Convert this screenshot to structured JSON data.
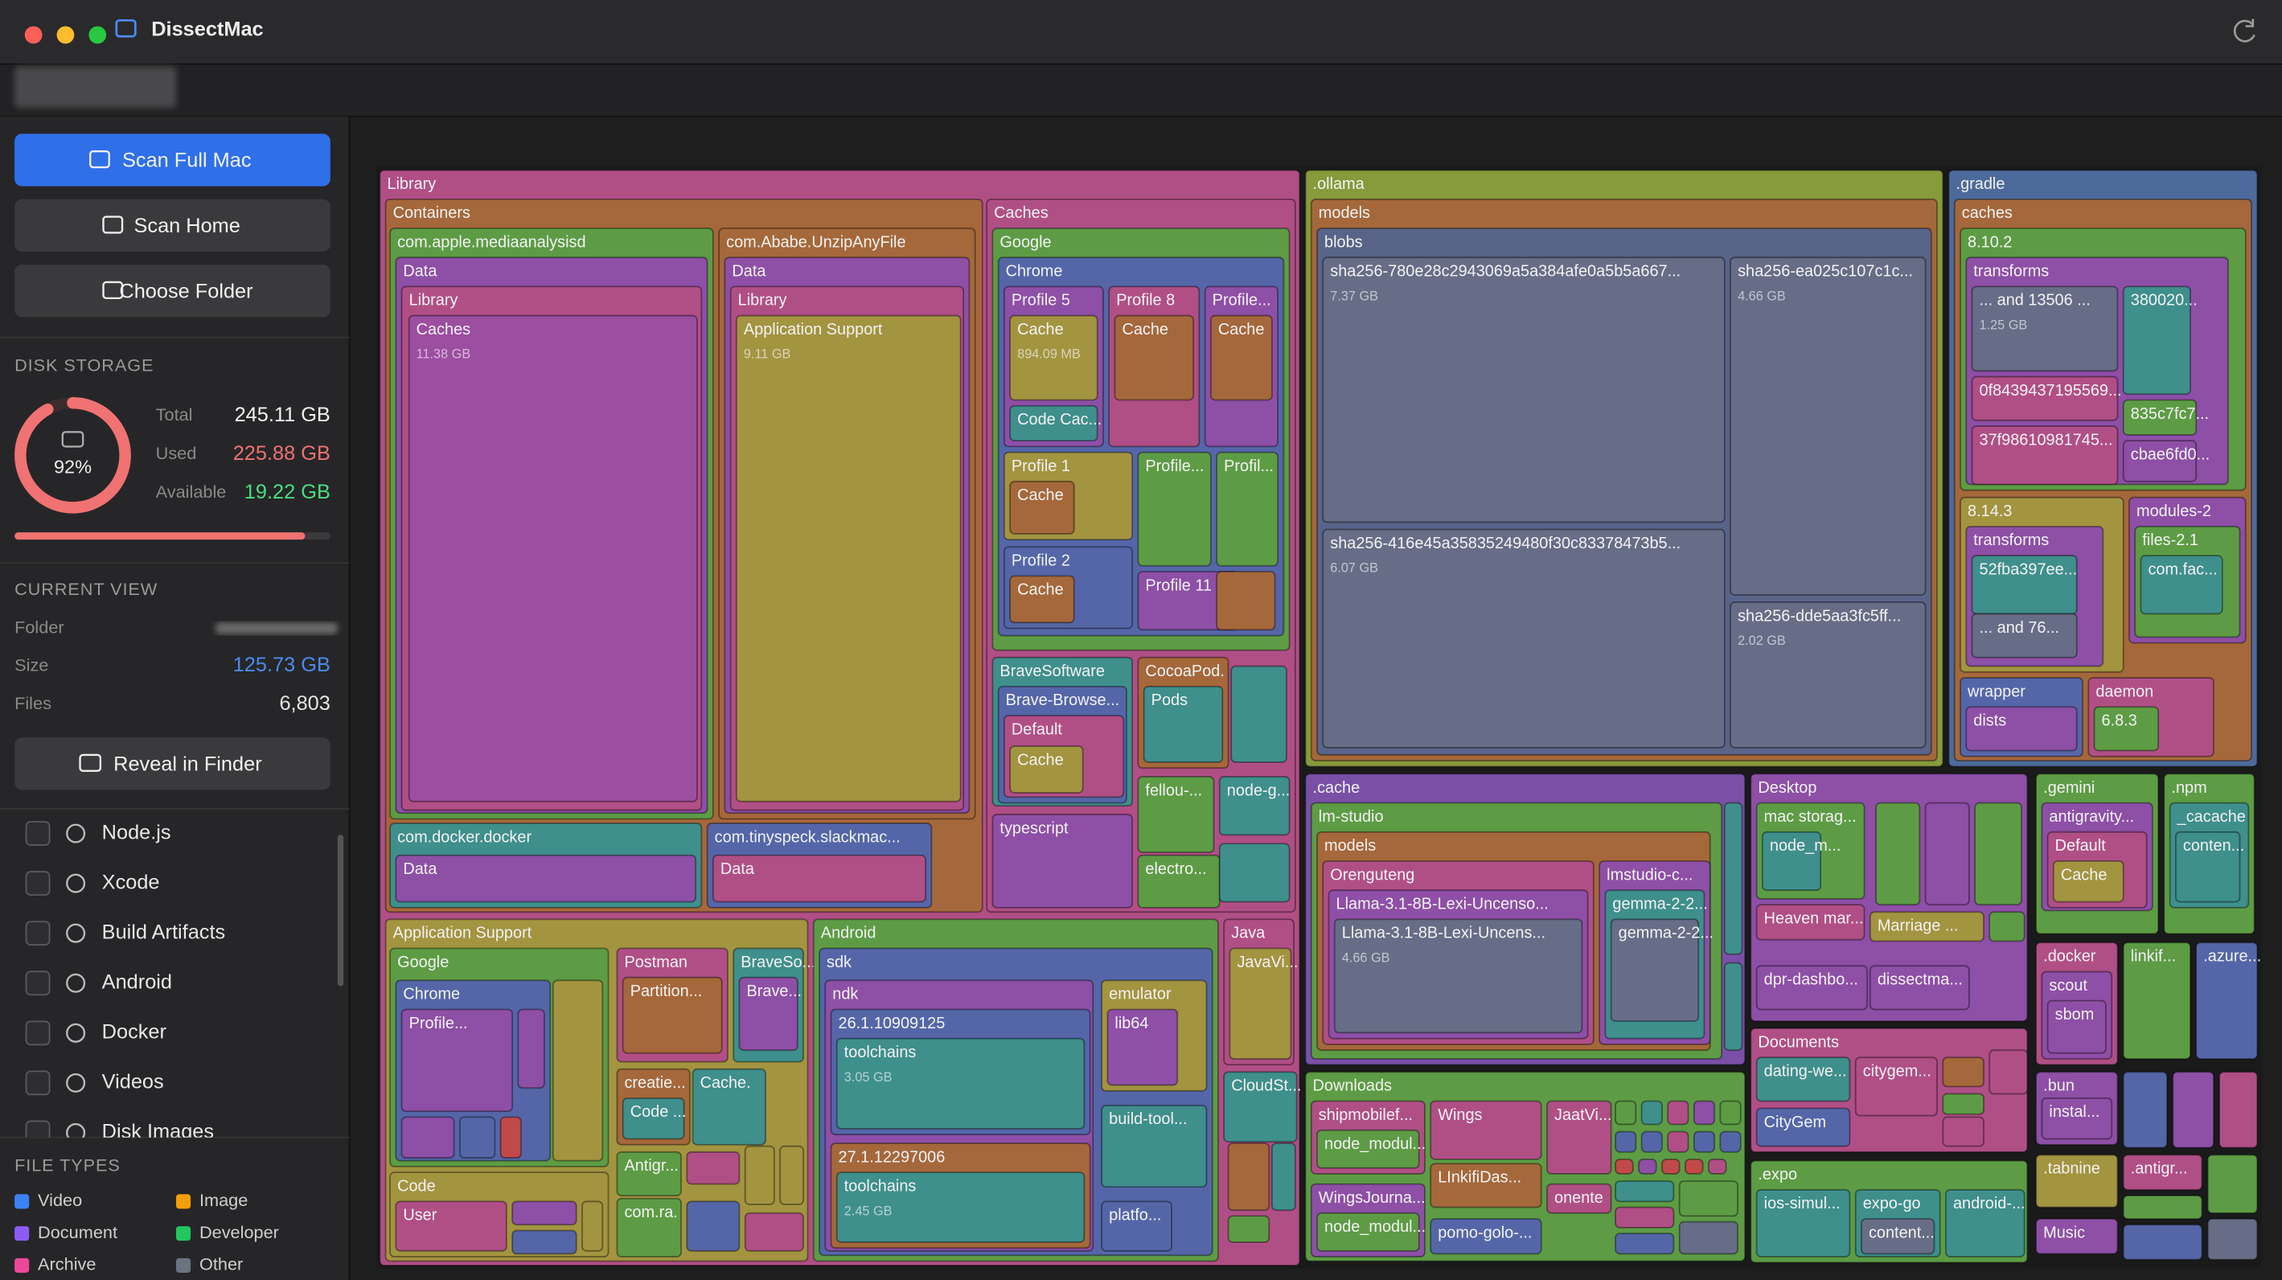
{
  "window": {
    "title": "DissectMac"
  },
  "sidebar": {
    "buttons": [
      "Scan Full Mac",
      "Scan Home",
      "Choose Folder"
    ],
    "disk_storage": {
      "heading": "DISK STORAGE",
      "usage": {
        "value": 92,
        "label": "92%"
      },
      "rows": [
        {
          "label": "Total",
          "value": "245.11 GB"
        },
        {
          "label": "Used",
          "value": "225.88 GB"
        },
        {
          "label": "Available",
          "value": "19.22 GB"
        }
      ]
    },
    "current_view": {
      "heading": "CURRENT VIEW",
      "folder_label": "Folder",
      "rows": [
        {
          "label": "Size",
          "value": "125.73 GB"
        },
        {
          "label": "Files",
          "value": "6,803"
        }
      ]
    },
    "reveal_button": "Reveal in Finder",
    "filters": [
      "Node.js",
      "Xcode",
      "Build Artifacts",
      "Android",
      "Docker",
      "Videos",
      "Disk Images"
    ],
    "file_types": {
      "heading": "FILE TYPES",
      "items": [
        {
          "name": "Video",
          "color": "#3b82f6"
        },
        {
          "name": "Image",
          "color": "#f59e0b"
        },
        {
          "name": "Document",
          "color": "#8b5cf6"
        },
        {
          "name": "Developer",
          "color": "#22c55e"
        },
        {
          "name": "Archive",
          "color": "#ec4899"
        },
        {
          "name": "Other",
          "color": "#6b7280"
        }
      ]
    }
  },
  "treemap": {
    "nodes": [
      {
        "label": "Library"
      },
      {
        "label": "Containers"
      },
      {
        "label": "com.apple.mediaanalysisd"
      },
      {
        "label": "Data"
      },
      {
        "label": "Library"
      },
      {
        "label": "Caches",
        "size": "11.38 GB"
      },
      {
        "label": "com.Ababe.UnzipAnyFile"
      },
      {
        "label": "Data"
      },
      {
        "label": "Library"
      },
      {
        "label": "Application Support",
        "size": "9.11 GB"
      },
      {
        "label": "com.docker.docker"
      },
      {
        "label": "Data"
      },
      {
        "label": "com.tinyspeck.slackmac..."
      },
      {
        "label": "Data"
      },
      {
        "label": "Caches"
      },
      {
        "label": "Google"
      },
      {
        "label": "Chrome"
      },
      {
        "label": "Profile 5"
      },
      {
        "label": "Cache",
        "size": "894.09 MB"
      },
      {
        "label": "Code Cac..."
      },
      {
        "label": "Profile 8"
      },
      {
        "label": "Cache"
      },
      {
        "label": "Profile..."
      },
      {
        "label": "Cache"
      },
      {
        "label": "Profile 1"
      },
      {
        "label": "Cache"
      },
      {
        "label": "Profile..."
      },
      {
        "label": "Profil..."
      },
      {
        "label": "Profile 2"
      },
      {
        "label": "Cache"
      },
      {
        "label": "Profile 11"
      },
      {
        "label": "BraveSoftware"
      },
      {
        "label": "Brave-Browse..."
      },
      {
        "label": "Default"
      },
      {
        "label": "Cache"
      },
      {
        "label": "CocoaPod."
      },
      {
        "label": "Pods"
      },
      {
        "label": "fellou-..."
      },
      {
        "label": "node-g..."
      },
      {
        "label": "typescript"
      },
      {
        "label": "electro..."
      },
      {
        "label": "Application Support"
      },
      {
        "label": "Google"
      },
      {
        "label": "Chrome"
      },
      {
        "label": "Profile..."
      },
      {
        "label": "Postman"
      },
      {
        "label": "Partition..."
      },
      {
        "label": "BraveSo..."
      },
      {
        "label": "Brave..."
      },
      {
        "label": "creatie..."
      },
      {
        "label": "Code ..."
      },
      {
        "label": "Cache."
      },
      {
        "label": "Antigr..."
      },
      {
        "label": "com.ra."
      },
      {
        "label": "Code"
      },
      {
        "label": "User"
      },
      {
        "label": "Android"
      },
      {
        "label": "sdk"
      },
      {
        "label": "ndk"
      },
      {
        "label": "26.1.10909125"
      },
      {
        "label": "toolchains",
        "size": "3.05 GB"
      },
      {
        "label": "27.1.12297006"
      },
      {
        "label": "toolchains",
        "size": "2.45 GB"
      },
      {
        "label": "emulator"
      },
      {
        "label": "lib64"
      },
      {
        "label": "build-tool..."
      },
      {
        "label": "platfo..."
      },
      {
        "label": "Java"
      },
      {
        "label": "JavaVi..."
      },
      {
        "label": "CloudSt..."
      },
      {
        "label": ".ollama"
      },
      {
        "label": "models"
      },
      {
        "label": "blobs"
      },
      {
        "label": "sha256-780e28c2943069a5a384afe0a5b5a667...",
        "size": "7.37 GB"
      },
      {
        "label": "sha256-ea025c107c1c...",
        "size": "4.66 GB"
      },
      {
        "label": "sha256-416e45a35835249480f30c83378473b5...",
        "size": "6.07 GB"
      },
      {
        "label": "sha256-dde5aa3fc5ff...",
        "size": "2.02 GB"
      },
      {
        "label": ".gradle"
      },
      {
        "label": "caches"
      },
      {
        "label": "8.10.2"
      },
      {
        "label": "transforms"
      },
      {
        "label": "... and 13506 ...",
        "size": "1.25 GB"
      },
      {
        "label": "380020..."
      },
      {
        "label": "0f8439437195569..."
      },
      {
        "label": "835c7fc7..."
      },
      {
        "label": "37f98610981745..."
      },
      {
        "label": "cbae6fd0..."
      },
      {
        "label": "8.14.3"
      },
      {
        "label": "transforms"
      },
      {
        "label": "52fba397ee..."
      },
      {
        "label": "... and 76..."
      },
      {
        "label": "modules-2"
      },
      {
        "label": "files-2.1"
      },
      {
        "label": "com.fac..."
      },
      {
        "label": "wrapper"
      },
      {
        "label": "dists"
      },
      {
        "label": "daemon"
      },
      {
        "label": "6.8.3"
      },
      {
        "label": ".cache"
      },
      {
        "label": "lm-studio"
      },
      {
        "label": "models"
      },
      {
        "label": "Orenguteng"
      },
      {
        "label": "Llama-3.1-8B-Lexi-Uncenso..."
      },
      {
        "label": "Llama-3.1-8B-Lexi-Uncens...",
        "size": "4.66 GB"
      },
      {
        "label": "lmstudio-c..."
      },
      {
        "label": "gemma-2-2..."
      },
      {
        "label": "gemma-2-2..."
      },
      {
        "label": "Downloads"
      },
      {
        "label": "shipmobilef..."
      },
      {
        "label": "node_modul..."
      },
      {
        "label": "Wings"
      },
      {
        "label": "JaatVi..."
      },
      {
        "label": "WingsJourna..."
      },
      {
        "label": "node_modul..."
      },
      {
        "label": "LInkifiDas..."
      },
      {
        "label": "onente"
      },
      {
        "label": "pomo-golo-..."
      },
      {
        "label": "Desktop"
      },
      {
        "label": "mac storag..."
      },
      {
        "label": "node_m..."
      },
      {
        "label": "Heaven mar..."
      },
      {
        "label": "Marriage ..."
      },
      {
        "label": "dpr-dashbo..."
      },
      {
        "label": "dissectma..."
      },
      {
        "label": "Documents"
      },
      {
        "label": "dating-we..."
      },
      {
        "label": "citygem..."
      },
      {
        "label": "CityGem"
      },
      {
        "label": ".expo"
      },
      {
        "label": "ios-simul..."
      },
      {
        "label": "expo-go"
      },
      {
        "label": "content..."
      },
      {
        "label": "android-..."
      },
      {
        "label": ".gemini"
      },
      {
        "label": "antigravity..."
      },
      {
        "label": "Default"
      },
      {
        "label": "Cache"
      },
      {
        "label": ".npm"
      },
      {
        "label": "_cacache"
      },
      {
        "label": "conten..."
      },
      {
        "label": ".docker"
      },
      {
        "label": "scout"
      },
      {
        "label": "sbom"
      },
      {
        "label": "linkif..."
      },
      {
        "label": ".azure..."
      },
      {
        "label": ".bun"
      },
      {
        "label": "instal..."
      },
      {
        "label": ".tabnine"
      },
      {
        "label": ".antigr..."
      },
      {
        "label": "Music"
      }
    ]
  }
}
